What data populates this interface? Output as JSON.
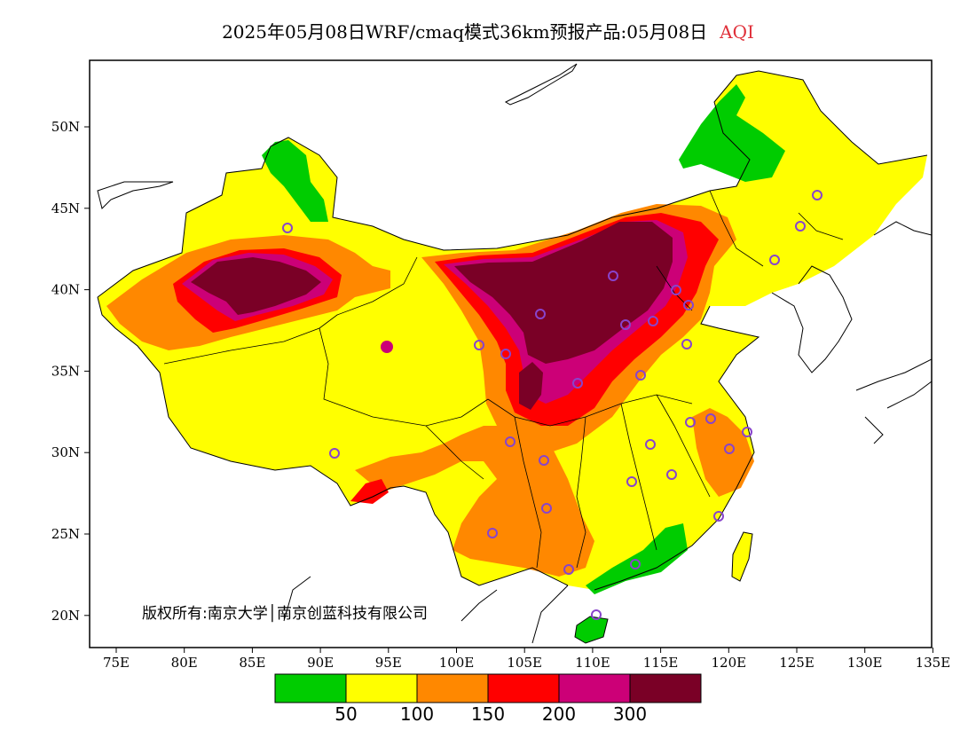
{
  "title": {
    "main": "2025年05月08日WRF/cmaq模式36km预报产品:05月08日",
    "highlight": "AQI"
  },
  "copyright": "版权所有:南京大学│南京创蓝科技有限公司",
  "axes": {
    "x_ticks": [
      "75E",
      "80E",
      "85E",
      "90E",
      "95E",
      "100E",
      "105E",
      "110E",
      "115E",
      "120E",
      "125E",
      "130E",
      "135E"
    ],
    "y_ticks": [
      "50N",
      "45N",
      "40N",
      "35N",
      "30N",
      "25N",
      "20N"
    ]
  },
  "legend": {
    "colors": [
      "#00cc00",
      "#ffff00",
      "#ff8800",
      "#ff0000",
      "#cc0077",
      "#7a0026"
    ],
    "labels": [
      "50",
      "100",
      "150",
      "200",
      "300"
    ]
  },
  "colors": {
    "green": "#00cc00",
    "yellow": "#ffff00",
    "orange": "#ff8800",
    "red": "#ff0000",
    "magenta": "#cc0077",
    "maroon": "#7a0026",
    "station": "#8844cc"
  }
}
